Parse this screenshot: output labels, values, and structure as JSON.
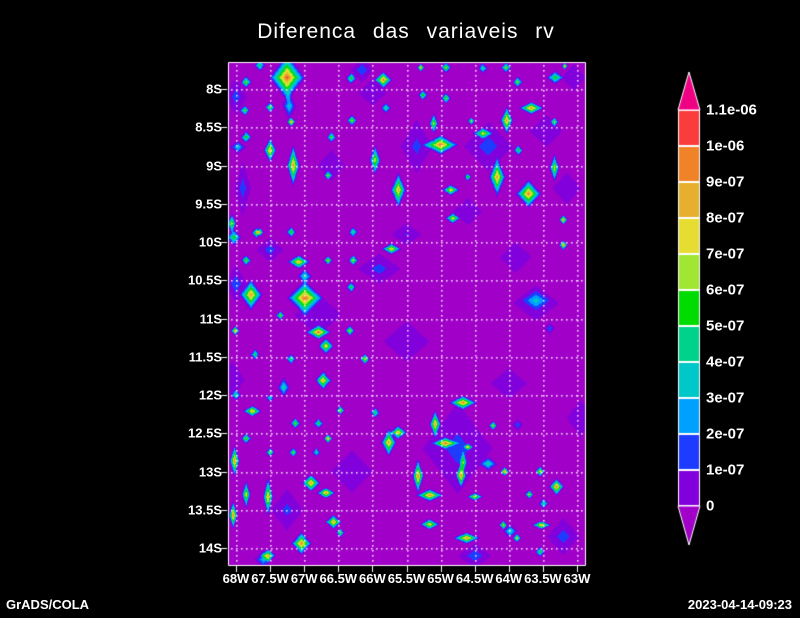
{
  "title": "Diferenca das variaveis rv",
  "footer": {
    "left": "GrADS/COLA",
    "right": "2023-04-14-09:23"
  },
  "chart_data": {
    "type": "heatmap",
    "title": "Diferenca das variaveis rv",
    "xlabel": "",
    "ylabel": "",
    "x_ticks": [
      "68W",
      "67.5W",
      "67W",
      "66.5W",
      "66W",
      "65.5W",
      "65W",
      "64.5W",
      "64W",
      "63.5W",
      "63W"
    ],
    "y_ticks": [
      "8S",
      "8.5S",
      "9S",
      "9.5S",
      "10S",
      "10.5S",
      "11S",
      "11.5S",
      "12S",
      "12.5S",
      "13S",
      "13.5S",
      "14S"
    ],
    "lon_range_w": [
      68.117,
      62.883
    ],
    "lat_range_s": [
      7.647,
      14.222
    ],
    "grid": "dotted",
    "legend_position": "right-colorbar",
    "levels": [
      0,
      1e-07,
      2e-07,
      3e-07,
      4e-07,
      5e-07,
      6e-07,
      7e-07,
      8e-07,
      9e-07,
      1e-06,
      1.1e-06
    ],
    "colorbar_labels": [
      "1.1e-06",
      "1e-06",
      "9e-07",
      "8e-07",
      "7e-07",
      "6e-07",
      "5e-07",
      "4e-07",
      "3e-07",
      "2e-07",
      "1e-07",
      "0"
    ],
    "colors": [
      "#a000c8",
      "#8200dc",
      "#1e3cff",
      "#00a0ff",
      "#00c8c8",
      "#00d28c",
      "#00dc00",
      "#a0e632",
      "#e6dc32",
      "#e6af2d",
      "#f08228",
      "#fa3c3c",
      "#f00082"
    ],
    "value_unit": "1e-07",
    "base_value": -0.4,
    "maxima": [
      [
        67.85,
        7.91,
        7.5,
        0.09,
        0.09
      ],
      [
        67.65,
        7.69,
        6,
        0.09,
        0.09
      ],
      [
        67.25,
        7.85,
        10.8,
        0.28,
        0.33
      ],
      [
        67.22,
        8.22,
        4,
        0.12,
        0.22
      ],
      [
        66.31,
        7.86,
        6.5,
        0.09,
        0.09
      ],
      [
        65.84,
        7.88,
        10.5,
        0.14,
        0.12
      ],
      [
        67.87,
        8.28,
        7,
        0.08,
        0.08
      ],
      [
        67.5,
        8.24,
        7.5,
        0.08,
        0.08
      ],
      [
        67.19,
        8.43,
        10.5,
        0.07,
        0.07
      ],
      [
        65.8,
        8.25,
        6,
        0.08,
        0.08
      ],
      [
        67.85,
        8.63,
        7,
        0.09,
        0.09
      ],
      [
        67.97,
        8.76,
        4,
        0.14,
        0.1
      ],
      [
        67.5,
        8.8,
        9.5,
        0.1,
        0.18
      ],
      [
        67.16,
        9.0,
        10,
        0.1,
        0.3
      ],
      [
        66.6,
        8.63,
        7,
        0.08,
        0.08
      ],
      [
        66.3,
        8.41,
        8,
        0.08,
        0.08
      ],
      [
        66.65,
        9.13,
        7,
        0.07,
        0.07
      ],
      [
        65.96,
        8.93,
        8,
        0.09,
        0.22
      ],
      [
        65.62,
        9.32,
        9.5,
        0.12,
        0.25
      ],
      [
        65.29,
        7.72,
        10,
        0.06,
        0.06
      ],
      [
        64.92,
        7.72,
        8,
        0.08,
        0.08
      ],
      [
        64.38,
        7.73,
        5.5,
        0.08,
        0.08
      ],
      [
        64.04,
        7.72,
        7.5,
        0.08,
        0.08
      ],
      [
        63.32,
        7.85,
        6.5,
        0.14,
        0.1
      ],
      [
        63.18,
        7.7,
        10,
        0.05,
        0.05
      ],
      [
        63.87,
        7.91,
        7.5,
        0.08,
        0.08
      ],
      [
        65.26,
        8.08,
        7,
        0.08,
        0.08
      ],
      [
        64.92,
        8.12,
        7.5,
        0.08,
        0.08
      ],
      [
        63.67,
        8.25,
        10.2,
        0.2,
        0.09
      ],
      [
        63.33,
        8.43,
        7,
        0.07,
        0.07
      ],
      [
        64.03,
        8.41,
        10,
        0.1,
        0.2
      ],
      [
        64.38,
        8.58,
        7.5,
        0.16,
        0.08
      ],
      [
        64.55,
        8.42,
        8,
        0.06,
        0.06
      ],
      [
        65.0,
        8.73,
        10.5,
        0.28,
        0.14
      ],
      [
        65.1,
        8.45,
        8,
        0.07,
        0.15
      ],
      [
        63.86,
        8.8,
        6.5,
        0.08,
        0.08
      ],
      [
        64.17,
        9.15,
        9.8,
        0.13,
        0.28
      ],
      [
        63.71,
        9.37,
        10.2,
        0.2,
        0.2
      ],
      [
        63.33,
        9.03,
        8,
        0.08,
        0.2
      ],
      [
        64.6,
        9.15,
        7.5,
        0.06,
        0.06
      ],
      [
        64.85,
        9.32,
        9,
        0.14,
        0.08
      ],
      [
        64.82,
        9.69,
        8.5,
        0.12,
        0.08
      ],
      [
        63.2,
        9.71,
        10,
        0.07,
        0.07
      ],
      [
        68.06,
        9.76,
        8,
        0.07,
        0.15
      ],
      [
        67.7,
        9.88,
        8,
        0.08,
        0.08
      ],
      [
        68.03,
        9.94,
        6.5,
        0.12,
        0.12
      ],
      [
        67.65,
        9.87,
        7,
        0.07,
        0.07
      ],
      [
        67.19,
        9.87,
        7,
        0.08,
        0.08
      ],
      [
        66.28,
        9.87,
        6,
        0.08,
        0.08
      ],
      [
        65.72,
        10.09,
        9,
        0.16,
        0.08
      ],
      [
        67.85,
        10.24,
        7.5,
        0.08,
        0.08
      ],
      [
        67.08,
        10.26,
        9.5,
        0.18,
        0.1
      ],
      [
        66.65,
        10.24,
        8.5,
        0.07,
        0.07
      ],
      [
        66.28,
        10.24,
        8,
        0.08,
        0.08
      ],
      [
        67.78,
        10.69,
        9.8,
        0.18,
        0.22
      ],
      [
        66.99,
        10.73,
        10.6,
        0.28,
        0.24
      ],
      [
        66.99,
        10.45,
        5,
        0.12,
        0.12
      ],
      [
        66.31,
        10.59,
        6.5,
        0.08,
        0.08
      ],
      [
        67.35,
        10.96,
        7.5,
        0.07,
        0.07
      ],
      [
        68.01,
        11.16,
        10.2,
        0.07,
        0.07
      ],
      [
        66.79,
        11.18,
        10,
        0.2,
        0.1
      ],
      [
        66.68,
        11.36,
        9,
        0.12,
        0.12
      ],
      [
        66.33,
        11.16,
        8,
        0.08,
        0.08
      ],
      [
        67.72,
        11.47,
        6,
        0.08,
        0.08
      ],
      [
        67.19,
        11.53,
        6.5,
        0.08,
        0.08
      ],
      [
        66.11,
        11.53,
        8.5,
        0.08,
        0.08
      ],
      [
        66.72,
        11.81,
        9.5,
        0.13,
        0.13
      ],
      [
        67.3,
        11.9,
        5,
        0.1,
        0.15
      ],
      [
        68.0,
        12.0,
        6,
        0.08,
        0.08
      ],
      [
        67.76,
        12.21,
        9.8,
        0.15,
        0.08
      ],
      [
        67.5,
        12.04,
        4.5,
        0.07,
        0.07
      ],
      [
        67.13,
        12.37,
        7.5,
        0.08,
        0.08
      ],
      [
        66.79,
        12.37,
        6.5,
        0.08,
        0.08
      ],
      [
        66.47,
        12.2,
        8.5,
        0.07,
        0.07
      ],
      [
        65.96,
        12.23,
        6,
        0.08,
        0.08
      ],
      [
        67.85,
        12.57,
        7.5,
        0.08,
        0.08
      ],
      [
        66.65,
        12.57,
        10,
        0.07,
        0.07
      ],
      [
        67.5,
        12.75,
        7.5,
        0.07,
        0.07
      ],
      [
        67.16,
        12.75,
        7,
        0.07,
        0.07
      ],
      [
        66.82,
        12.75,
        5.5,
        0.07,
        0.07
      ],
      [
        68.02,
        12.86,
        10.2,
        0.08,
        0.22
      ],
      [
        65.76,
        12.62,
        9.8,
        0.12,
        0.2
      ],
      [
        67.85,
        13.3,
        8.5,
        0.07,
        0.2
      ],
      [
        67.53,
        13.33,
        9.5,
        0.08,
        0.28
      ],
      [
        66.9,
        13.15,
        10,
        0.15,
        0.12
      ],
      [
        66.68,
        13.28,
        10.4,
        0.15,
        0.08
      ],
      [
        68.04,
        13.57,
        10.4,
        0.07,
        0.2
      ],
      [
        66.57,
        13.66,
        10,
        0.13,
        0.1
      ],
      [
        67.04,
        13.94,
        10.2,
        0.16,
        0.16
      ],
      [
        66.47,
        13.8,
        7,
        0.07,
        0.07
      ],
      [
        67.53,
        14.1,
        9,
        0.12,
        0.1
      ],
      [
        64.67,
        12.1,
        10.2,
        0.22,
        0.1
      ],
      [
        65.08,
        12.38,
        9.8,
        0.09,
        0.2
      ],
      [
        64.93,
        12.63,
        9.5,
        0.22,
        0.08
      ],
      [
        65.62,
        12.49,
        9.5,
        0.14,
        0.1
      ],
      [
        64.23,
        12.4,
        8,
        0.07,
        0.07
      ],
      [
        64.67,
        12.88,
        6.5,
        0.06,
        0.18
      ],
      [
        64.6,
        12.68,
        8.5,
        0.08,
        0.05
      ],
      [
        64.06,
        13.0,
        10,
        0.07,
        0.07
      ],
      [
        64.3,
        12.9,
        5,
        0.15,
        0.1
      ],
      [
        63.54,
        13.0,
        8.5,
        0.08,
        0.08
      ],
      [
        65.33,
        13.06,
        10.4,
        0.09,
        0.25
      ],
      [
        65.16,
        13.31,
        10.2,
        0.22,
        0.09
      ],
      [
        64.7,
        13.05,
        9.5,
        0.08,
        0.18
      ],
      [
        64.5,
        13.33,
        8.5,
        0.13,
        0.06
      ],
      [
        63.3,
        13.2,
        10.4,
        0.12,
        0.12
      ],
      [
        63.7,
        13.3,
        8,
        0.07,
        0.07
      ],
      [
        63.49,
        13.42,
        5.5,
        0.08,
        0.08
      ],
      [
        65.16,
        13.69,
        9,
        0.16,
        0.08
      ],
      [
        64.62,
        13.87,
        10,
        0.22,
        0.08
      ],
      [
        64.08,
        13.7,
        8.5,
        0.07,
        0.07
      ],
      [
        63.88,
        13.87,
        8.5,
        0.07,
        0.07
      ],
      [
        63.98,
        13.78,
        5,
        0.12,
        0.1
      ],
      [
        63.52,
        13.7,
        9.5,
        0.16,
        0.06
      ],
      [
        63.54,
        14.05,
        6.5,
        0.08,
        0.08
      ],
      [
        63.2,
        10.04,
        10,
        0.07,
        0.07
      ]
    ],
    "background_patches": [
      [
        68.0,
        8.1,
        2,
        0.2,
        0.3
      ],
      [
        66.15,
        7.75,
        2.3,
        0.2,
        0.2
      ],
      [
        66.0,
        8.05,
        1.3,
        0.3,
        0.25
      ],
      [
        65.35,
        8.75,
        1.8,
        0.3,
        0.45
      ],
      [
        64.3,
        8.75,
        2,
        0.45,
        0.4
      ],
      [
        63.45,
        8.55,
        1.3,
        0.35,
        0.3
      ],
      [
        63.15,
        9.3,
        1.3,
        0.3,
        0.3
      ],
      [
        67.9,
        9.3,
        2,
        0.15,
        0.45
      ],
      [
        66.6,
        9.0,
        1.2,
        0.3,
        0.3
      ],
      [
        65.9,
        10.35,
        1.9,
        0.4,
        0.25
      ],
      [
        67.5,
        10.1,
        2,
        0.25,
        0.2
      ],
      [
        68.0,
        10.55,
        2.2,
        0.2,
        0.3
      ],
      [
        66.8,
        10.95,
        1.3,
        0.5,
        0.4
      ],
      [
        65.5,
        11.3,
        1.2,
        0.5,
        0.4
      ],
      [
        63.6,
        10.76,
        2.9,
        0.28,
        0.16
      ],
      [
        63.6,
        10.8,
        1.2,
        0.5,
        0.35
      ],
      [
        63.4,
        11.13,
        2.3,
        0.1,
        0.1
      ],
      [
        63.87,
        12.39,
        2.3,
        0.1,
        0.1
      ],
      [
        64.0,
        11.85,
        1.2,
        0.4,
        0.3
      ],
      [
        64.75,
        12.7,
        1.9,
        0.65,
        0.75
      ],
      [
        66.3,
        13.0,
        1.3,
        0.45,
        0.4
      ],
      [
        67.25,
        13.5,
        1.8,
        0.3,
        0.35
      ],
      [
        63.2,
        13.85,
        2,
        0.3,
        0.3
      ],
      [
        64.5,
        14.1,
        2.2,
        0.3,
        0.2
      ],
      [
        67.6,
        14.15,
        3.5,
        0.15,
        0.15
      ],
      [
        68.05,
        11.8,
        1.3,
        0.25,
        0.35
      ],
      [
        62.95,
        12.3,
        1.2,
        0.3,
        0.35
      ],
      [
        63.05,
        7.85,
        1.3,
        0.25,
        0.25
      ],
      [
        65.5,
        9.9,
        1.5,
        0.3,
        0.2
      ],
      [
        64.6,
        9.6,
        1.4,
        0.3,
        0.25
      ],
      [
        63.9,
        10.2,
        1.2,
        0.35,
        0.3
      ]
    ]
  }
}
